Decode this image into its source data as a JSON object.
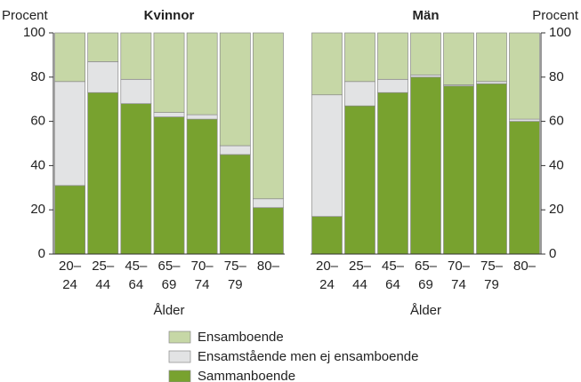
{
  "chart_data": [
    {
      "type": "bar",
      "stacked": true,
      "title": "Kvinnor",
      "y_label": "Procent",
      "x_label": "Ålder",
      "axis_side": "left",
      "categories": [
        "20–24",
        "25–44",
        "45–64",
        "65–69",
        "70–74",
        "75–79",
        "80–"
      ],
      "series": [
        {
          "name": "Sammanboende",
          "color": "#78a22f",
          "values": [
            31,
            73,
            68,
            62,
            61,
            45,
            21
          ]
        },
        {
          "name": "Ensamstående men ej ensamboende",
          "color": "#e2e3e4",
          "values": [
            47,
            14,
            11,
            2,
            2,
            4,
            4
          ]
        },
        {
          "name": "Ensamboende",
          "color": "#c6d7a6",
          "values": [
            22,
            13,
            21,
            36,
            37,
            51,
            75
          ]
        }
      ],
      "ylim": [
        0,
        100
      ],
      "yticks": [
        0,
        20,
        40,
        60,
        80,
        100
      ]
    },
    {
      "type": "bar",
      "stacked": true,
      "title": "Män",
      "y_label": "Procent",
      "x_label": "Ålder",
      "axis_side": "right",
      "categories": [
        "20–24",
        "25–44",
        "45–64",
        "65–69",
        "70–74",
        "75–79",
        "80–"
      ],
      "series": [
        {
          "color": "#78a22f",
          "values": [
            17,
            67,
            73,
            80,
            76,
            77,
            60
          ]
        },
        {
          "color": "#e2e3e4",
          "values": [
            55,
            11,
            6,
            1,
            0.5,
            1,
            1
          ]
        },
        {
          "color": "#c6d7a6",
          "values": [
            28,
            22,
            21,
            19,
            23.5,
            22,
            39
          ]
        }
      ],
      "ylim": [
        0,
        100
      ],
      "yticks": [
        0,
        20,
        40,
        60,
        80,
        100
      ]
    }
  ]
}
